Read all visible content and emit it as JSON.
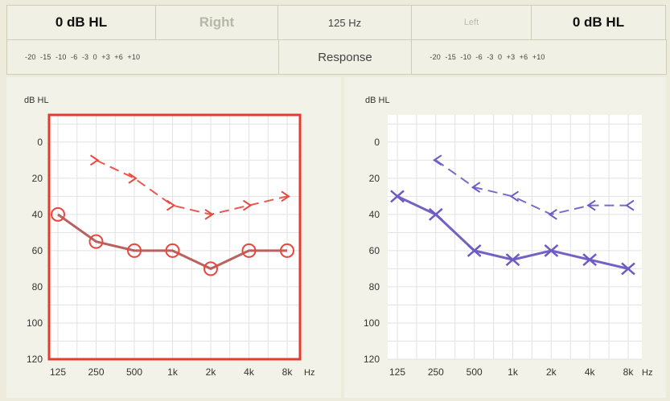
{
  "header": {
    "right_level": "0 dB HL",
    "right_label": "Right",
    "frequency": "125 Hz",
    "left_label": "Left",
    "left_level": "0 dB HL",
    "right_scale": "-20  -15  -10  -6  -3  0  +3  +6  +10",
    "response_label": "Response",
    "left_scale": "-20  -15  -10  -6  -3  0  +3  +6  +10"
  },
  "colors": {
    "right": "#e8463f",
    "right_line": "#b0524e",
    "left": "#6b5bc3",
    "left_line": "#6650bc",
    "frame": "#e63a2e"
  },
  "chart_data": [
    {
      "type": "line",
      "ear": "right",
      "ylabel": "dB HL",
      "xlabel": "Hz",
      "categories": [
        "125",
        "250",
        "500",
        "1k",
        "2k",
        "4k",
        "8k"
      ],
      "y_ticks": [
        0,
        20,
        40,
        60,
        80,
        100,
        120
      ],
      "ylim": [
        -15,
        120
      ],
      "y_inverted": true,
      "grid": true,
      "selected": true,
      "series": [
        {
          "marker": "circle",
          "style": "solid",
          "values": [
            40,
            55,
            60,
            60,
            70,
            60,
            60
          ]
        },
        {
          "marker": "right-chevron",
          "style": "dashed",
          "values": [
            null,
            10,
            20,
            35,
            40,
            35,
            30
          ]
        }
      ]
    },
    {
      "type": "line",
      "ear": "left",
      "ylabel": "dB HL",
      "xlabel": "Hz",
      "categories": [
        "125",
        "250",
        "500",
        "1k",
        "2k",
        "4k",
        "8k"
      ],
      "y_ticks": [
        0,
        20,
        40,
        60,
        80,
        100,
        120
      ],
      "ylim": [
        -15,
        120
      ],
      "y_inverted": true,
      "grid": true,
      "selected": false,
      "series": [
        {
          "marker": "x",
          "style": "solid",
          "values": [
            30,
            40,
            60,
            65,
            60,
            65,
            70
          ]
        },
        {
          "marker": "left-chevron",
          "style": "dashed",
          "values": [
            null,
            10,
            25,
            30,
            40,
            35,
            35
          ]
        }
      ]
    }
  ]
}
